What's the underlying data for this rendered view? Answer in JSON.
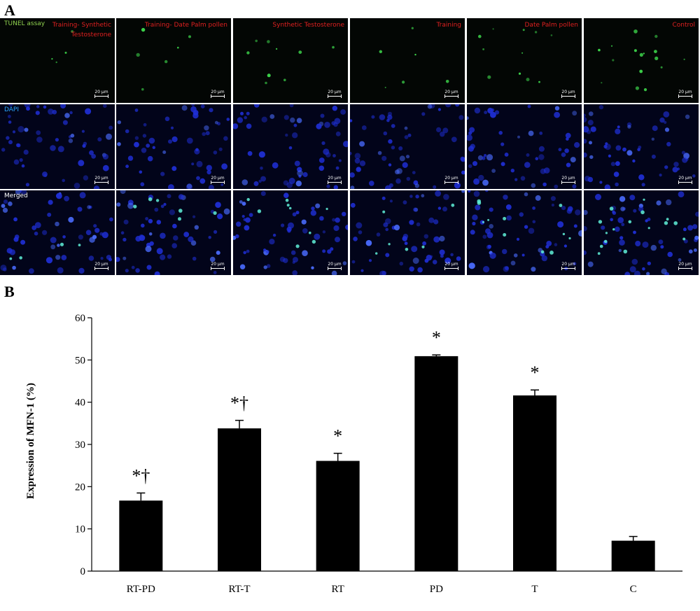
{
  "panel_a_label": "A",
  "panel_b_label": "B",
  "micrograph": {
    "row_labels": [
      {
        "text": "TUNEL assay",
        "color": "#8fd14f"
      },
      {
        "text": "DAPI",
        "color": "#2aa8ff"
      },
      {
        "text": "Merged",
        "color": "#ffffff"
      }
    ],
    "columns": [
      {
        "title_lines": [
          "Training- Synthetic",
          "Testosterone"
        ]
      },
      {
        "title_lines": [
          "Training- Date Palm pollen"
        ]
      },
      {
        "title_lines": [
          "Synthetic Testosterone"
        ]
      },
      {
        "title_lines": [
          "Training"
        ]
      },
      {
        "title_lines": [
          "Date Palm pollen"
        ]
      },
      {
        "title_lines": [
          "Control"
        ]
      }
    ],
    "scale_bar_label": "20 μm",
    "title_color": "#e02020"
  },
  "chart_data": {
    "type": "bar",
    "categories": [
      "RT-PD",
      "RT-T",
      "RT",
      "PD",
      "T",
      "C"
    ],
    "values": [
      16.7,
      33.8,
      26.1,
      50.9,
      41.6,
      7.2
    ],
    "errors": [
      1.8,
      1.9,
      1.8,
      0.3,
      1.3,
      1.0
    ],
    "annotations": [
      "*†",
      "*†",
      "*",
      "*",
      "*",
      ""
    ],
    "title": "",
    "xlabel": "",
    "ylabel": "Expression of MFN-1 (%)",
    "ylim": [
      0,
      60
    ],
    "yticks": [
      0,
      10,
      20,
      30,
      40,
      50,
      60
    ],
    "bar_color": "#000000",
    "grid": false
  }
}
